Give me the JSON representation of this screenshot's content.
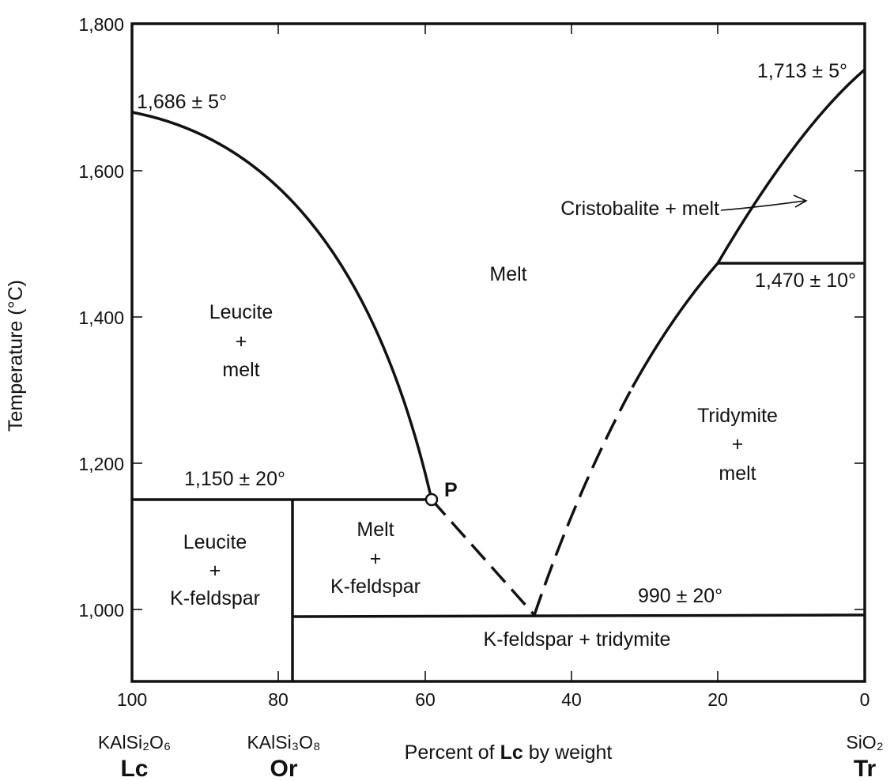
{
  "diagram": {
    "y_axis_label": "Temperature (°C)",
    "x_axis_label_prefix": "Percent of ",
    "x_axis_label_bold": "Lc",
    "x_axis_label_suffix": " by weight",
    "y_ticks": [
      "1,800",
      "1,600",
      "1,400",
      "1,200",
      "1,000"
    ],
    "x_ticks": [
      "100",
      "80",
      "60",
      "40",
      "20",
      "0"
    ],
    "endmembers": [
      {
        "formula": "KAlSi₂O₆",
        "symbol": "Lc"
      },
      {
        "formula": "KAlSi₃O₈",
        "symbol": "Or"
      },
      {
        "formula": "SiO₂",
        "symbol": "Tr"
      }
    ],
    "temperatures": {
      "leucite_melting": "1,686 ± 5°",
      "cristobalite_melting": "1,713 ± 5°",
      "cristobalite_tridymite": "1,470 ± 10°",
      "peritectic": "1,150 ± 20°",
      "eutectic": "990 ± 20°"
    },
    "point_label": "P",
    "fields": {
      "melt": "Melt",
      "leucite_melt": [
        "Leucite",
        "+",
        "melt"
      ],
      "cristobalite_melt": "Cristobalite + melt",
      "tridymite_melt": [
        "Tridymite",
        "+",
        "melt"
      ],
      "melt_kfeldspar": [
        "Melt",
        "+",
        "K-feldspar"
      ],
      "leucite_kfeldspar": [
        "Leucite",
        "+",
        "K-feldspar"
      ],
      "kfeldspar_tridymite": "K-feldspar + tridymite"
    }
  },
  "chart_data": {
    "type": "phase-diagram",
    "x_range": [
      100,
      0
    ],
    "y_range": [
      900,
      1800
    ],
    "x_unit": "wt% Lc",
    "y_unit": "°C",
    "points": {
      "leucite_melting": {
        "x": 100,
        "y": 1686
      },
      "cristobalite_melting": {
        "x": 0,
        "y": 1713
      },
      "peritectic_P": {
        "x": 59.5,
        "y": 1150
      },
      "eutectic": {
        "x": 45.5,
        "y": 990
      },
      "orthoclase": {
        "x": 78,
        "y": 1150
      },
      "cristobalite_tridymite_boundary": {
        "x": 20,
        "y": 1470
      }
    },
    "boundaries": {
      "peritectic_line": {
        "x": [
          100,
          59.5
        ],
        "y": 1150
      },
      "eutectic_line": {
        "x": [
          78,
          0
        ],
        "y": 990
      },
      "cristobalite_tridymite_line": {
        "x": [
          20,
          0
        ],
        "y": 1470
      },
      "orthoclase_line": {
        "x": 78,
        "y": [
          900,
          1150
        ]
      }
    }
  }
}
